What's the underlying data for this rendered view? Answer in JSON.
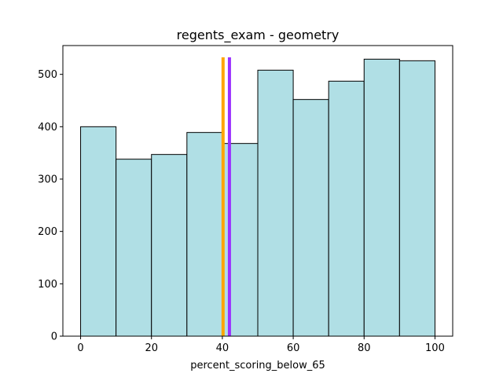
{
  "chart_data": {
    "type": "bar",
    "title": "regents_exam - geometry",
    "xlabel": "percent_scoring_below_65",
    "ylabel": "",
    "bins": [
      {
        "x0": 0,
        "x1": 10,
        "count": 400
      },
      {
        "x0": 10,
        "x1": 20,
        "count": 338
      },
      {
        "x0": 20,
        "x1": 30,
        "count": 347
      },
      {
        "x0": 30,
        "x1": 40,
        "count": 389
      },
      {
        "x0": 40,
        "x1": 50,
        "count": 368
      },
      {
        "x0": 50,
        "x1": 60,
        "count": 508
      },
      {
        "x0": 60,
        "x1": 70,
        "count": 452
      },
      {
        "x0": 70,
        "x1": 80,
        "count": 487
      },
      {
        "x0": 80,
        "x1": 90,
        "count": 529
      },
      {
        "x0": 90,
        "x1": 100,
        "count": 526
      }
    ],
    "vlines": [
      {
        "x": 40.2,
        "color": "#ffa500"
      },
      {
        "x": 42.0,
        "color": "#9b30ff"
      }
    ],
    "xlim": [
      -5,
      105
    ],
    "ylim": [
      0,
      555
    ],
    "xticks": [
      0,
      20,
      40,
      60,
      80,
      100
    ],
    "yticks": [
      0,
      100,
      200,
      300,
      400,
      500
    ],
    "bar_color": "#b0dfe5",
    "edge_color": "#000000",
    "grid": false,
    "legend": false
  }
}
